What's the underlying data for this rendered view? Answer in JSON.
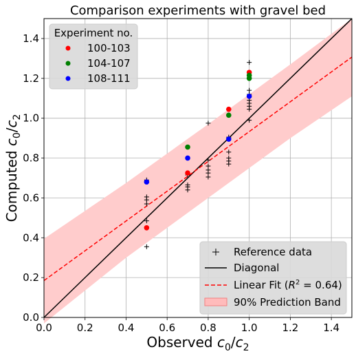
{
  "chart_data": {
    "type": "scatter",
    "title": "Comparison experiments with gravel bed",
    "xlabel": {
      "main": "Observed ",
      "var": "c",
      "sub0": "0",
      "slash": "/",
      "var2": "c",
      "sub2": "2"
    },
    "ylabel": {
      "main": "Computed ",
      "var": "c",
      "sub0": "0",
      "slash": "/",
      "var2": "c",
      "sub2": "2"
    },
    "xlim": [
      0.0,
      1.5
    ],
    "ylim": [
      0.0,
      1.5
    ],
    "xticks": [
      "0.0",
      "0.2",
      "0.4",
      "0.6",
      "0.8",
      "1.0",
      "1.2",
      "1.4"
    ],
    "yticks": [
      "0.0",
      "0.2",
      "0.4",
      "0.6",
      "0.8",
      "1.0",
      "1.2",
      "1.4"
    ],
    "grid": true,
    "experiment_legend": {
      "title": "Experiment no.",
      "placement": "top-left",
      "entries": [
        {
          "label": "100-103",
          "color": "#ff0000"
        },
        {
          "label": "104-107",
          "color": "#008000"
        },
        {
          "label": "108-111",
          "color": "#0000ff"
        }
      ]
    },
    "experiments": [
      {
        "name": "100-103",
        "color": "#ff0000",
        "points": [
          [
            0.5,
            0.45
          ],
          [
            0.7,
            0.725
          ],
          [
            0.9,
            1.045
          ],
          [
            1.0,
            1.23
          ]
        ]
      },
      {
        "name": "104-107",
        "color": "#008000",
        "points": [
          [
            0.7,
            0.855
          ],
          [
            0.9,
            1.015
          ],
          [
            1.0,
            1.2
          ],
          [
            1.0,
            1.215
          ]
        ]
      },
      {
        "name": "108-111",
        "color": "#0000ff",
        "points": [
          [
            0.5,
            0.68
          ],
          [
            0.7,
            0.8
          ],
          [
            0.9,
            0.895
          ],
          [
            1.0,
            1.11
          ]
        ]
      }
    ],
    "reference_data": {
      "label": "Reference data",
      "points": [
        [
          0.5,
          0.355
        ],
        [
          0.5,
          0.485
        ],
        [
          0.5,
          0.57
        ],
        [
          0.5,
          0.59
        ],
        [
          0.5,
          0.605
        ],
        [
          0.5,
          0.69
        ],
        [
          0.7,
          0.64
        ],
        [
          0.7,
          0.655
        ],
        [
          0.7,
          0.665
        ],
        [
          0.7,
          0.715
        ],
        [
          0.8,
          0.705
        ],
        [
          0.8,
          0.725
        ],
        [
          0.8,
          0.74
        ],
        [
          0.8,
          0.76
        ],
        [
          0.8,
          0.79
        ],
        [
          0.8,
          0.975
        ],
        [
          0.9,
          0.77
        ],
        [
          0.9,
          0.785
        ],
        [
          0.9,
          0.8
        ],
        [
          0.9,
          0.83
        ],
        [
          0.9,
          0.9
        ],
        [
          0.9,
          0.905
        ],
        [
          1.0,
          0.99
        ],
        [
          1.0,
          1.045
        ],
        [
          1.0,
          1.06
        ],
        [
          1.0,
          1.075
        ],
        [
          1.0,
          1.09
        ],
        [
          1.0,
          1.12
        ],
        [
          1.0,
          1.14
        ],
        [
          1.0,
          1.215
        ],
        [
          1.0,
          1.28
        ]
      ]
    },
    "diagonal": {
      "label": "Diagonal",
      "color": "#000000",
      "points": [
        [
          0,
          0
        ],
        [
          1.5,
          1.5
        ]
      ]
    },
    "linear_fit": {
      "label_text": "Linear Fit (",
      "label_r": "R",
      "label_sup": "2",
      "label_end": " = 0.64)",
      "color": "#ff0000",
      "intercept": 0.185,
      "slope": 0.748
    },
    "prediction_band": {
      "label": "90% Prediction Band",
      "color": "#ffcccc",
      "lower": [
        [
          0,
          -0.03
        ],
        [
          0.4,
          0.3
        ],
        [
          0.8,
          0.6
        ],
        [
          1.2,
          0.9
        ],
        [
          1.5,
          1.11
        ]
      ],
      "upper": [
        [
          0,
          0.395
        ],
        [
          0.4,
          0.675
        ],
        [
          0.8,
          0.97
        ],
        [
          1.2,
          1.27
        ],
        [
          1.5,
          1.5
        ]
      ]
    },
    "series_legend_placement": "bottom-right"
  }
}
